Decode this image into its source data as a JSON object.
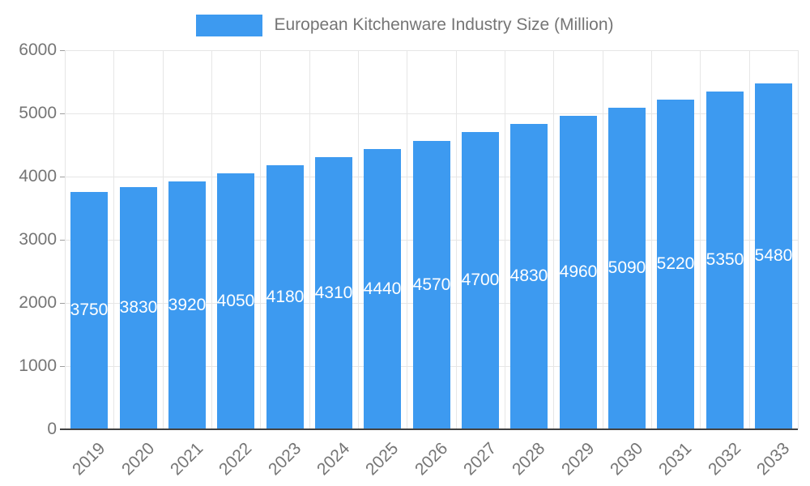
{
  "chart_data": {
    "type": "bar",
    "title": "European Kitchenware Industry Size (Million)",
    "categories": [
      "2019",
      "2020",
      "2021",
      "2022",
      "2023",
      "2024",
      "2025",
      "2026",
      "2027",
      "2028",
      "2029",
      "2030",
      "2031",
      "2032",
      "2033"
    ],
    "values": [
      3750,
      3830,
      3920,
      4050,
      4180,
      4310,
      4440,
      4570,
      4700,
      4830,
      4960,
      5090,
      5220,
      5350,
      5480
    ],
    "xlabel": "",
    "ylabel": "",
    "ylim": [
      0,
      6000
    ],
    "ytick_step": 1000,
    "ytick_labels": [
      "0",
      "1000",
      "2000",
      "3000",
      "4000",
      "5000",
      "6000"
    ],
    "grid": true,
    "legend_position": "top",
    "bar_color": "#3d9af0",
    "value_label_color": "#ffffff",
    "axis_text_color": "#757575",
    "grid_color": "#e6e6e6"
  }
}
